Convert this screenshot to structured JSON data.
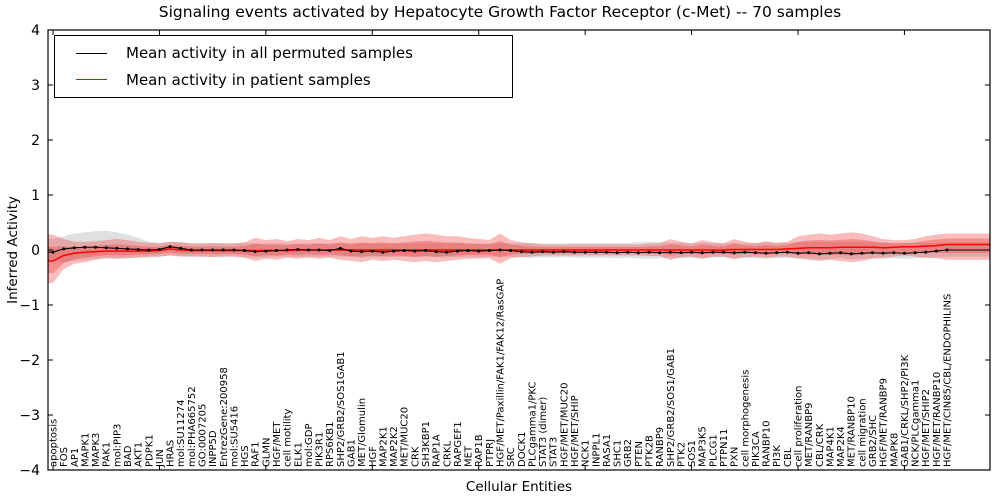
{
  "figure": {
    "title": "Signaling events activated by Hepatocyte Growth Factor Receptor (c-Met) -- 70 samples",
    "xlabel": "Cellular Entities",
    "ylabel": "Inferred Activity"
  },
  "legend": {
    "entries": [
      {
        "label": "Mean activity in all permuted samples",
        "color": "#000000"
      },
      {
        "label": "Mean activity in patient samples",
        "color": "#ff0000"
      }
    ]
  },
  "colors": {
    "permuted_line": "#000000",
    "patient_line": "#ff0000",
    "permuted_band": "#999999",
    "patient_band": "#f03030",
    "axis": "#000000",
    "background": "#ffffff"
  },
  "chart_data": {
    "type": "line",
    "title": "Signaling events activated by Hepatocyte Growth Factor Receptor (c-Met) -- 70 samples",
    "xlabel": "Cellular Entities",
    "ylabel": "Inferred Activity",
    "ylim": [
      -4,
      4
    ],
    "yticklabels": [
      "4",
      "3",
      "2",
      "1",
      "0",
      "−1",
      "−2",
      "−3",
      "−4"
    ],
    "ytick_values": [
      4,
      3,
      2,
      1,
      0,
      -1,
      -2,
      -3,
      -4
    ],
    "xtick_indices": [
      0,
      10,
      20,
      30,
      40,
      50,
      60,
      70,
      80
    ],
    "grid": false,
    "legend_position": "upper left",
    "categories": [
      "apoptosis",
      "FOS",
      "AP1",
      "MAPK1",
      "MAPK3",
      "PAK1",
      "mol:PIP3",
      "BAD",
      "AKT1",
      "PDPK1",
      "JUN",
      "HRAS",
      "mol:SU11274",
      "mol:PHA665752",
      "GO:0007205",
      "INPP5D",
      "EntrezGene:200958",
      "mol:SU5416",
      "HGS",
      "RAF1",
      "GLMN",
      "HGF/MET",
      "cell motility",
      "ELK1",
      "mol:GDP",
      "PIK3R1",
      "RPS6KB1",
      "SHP2/GRB2/SOS1GAB1",
      "GAB1",
      "MET/Glomulin",
      "HGF",
      "MAP2K1",
      "MAP2K2",
      "MET/MUC20",
      "CRK",
      "SH3KBP1",
      "RAP1A",
      "CRKL",
      "RAPGEF1",
      "MET",
      "RAP1B",
      "PTPRJ",
      "HGF/MET/Paxillin/FAK1/FAK12/RasGAP",
      "SRC",
      "DOCK1",
      "PLCgamma1/PKC",
      "STAT3 (dimer)",
      "STAT3",
      "HGF/MET/MUC20",
      "HGF/MET/SHIP",
      "NCK1",
      "INPPL1",
      "RASA1",
      "SHC1",
      "GRB2",
      "PTEN",
      "PTK2B",
      "RANBP9",
      "SHP2/GRB2/SOS1/GAB1",
      "PTK2",
      "SOS1",
      "MAP3K5",
      "PLCG1",
      "PTPN11",
      "PXN",
      "cell morphogenesis",
      "PIK3CA",
      "RANBP10",
      "PI3K",
      "CBL",
      "cell proliferation",
      "MET/RANBP9",
      "CBL/CRK",
      "MAP4K1",
      "MAP2K4",
      "MET/RANBP10",
      "cell migration",
      "GRB2/SHC",
      "HGF/MET/RANBP9",
      "MAPK8",
      "GAB1/CRKL/SHP2/PI3K",
      "NCK/PLCgamma1",
      "HGF/MET/SHIP2",
      "HGF/MET/RANBP10",
      "HGF/MET/CIN85/CBL/ENDOPHILINS"
    ],
    "series": [
      {
        "name": "Mean activity in all permuted samples",
        "color": "#000000",
        "style": "solid with dot markers",
        "values": [
          -0.04,
          0.02,
          0.04,
          0.05,
          0.05,
          0.04,
          0.03,
          0.02,
          0.01,
          0.0,
          0.01,
          0.06,
          0.03,
          0.0,
          0.0,
          0.0,
          0.0,
          0.0,
          -0.01,
          -0.03,
          -0.02,
          -0.01,
          0.0,
          0.01,
          0.0,
          0.0,
          -0.01,
          0.03,
          -0.02,
          -0.03,
          -0.02,
          -0.04,
          -0.02,
          -0.01,
          -0.02,
          -0.01,
          -0.03,
          -0.04,
          -0.02,
          -0.01,
          -0.02,
          -0.01,
          0.0,
          -0.01,
          -0.03,
          -0.04,
          -0.03,
          -0.04,
          -0.03,
          -0.04,
          -0.04,
          -0.04,
          -0.04,
          -0.05,
          -0.04,
          -0.05,
          -0.04,
          -0.05,
          -0.04,
          -0.05,
          -0.04,
          -0.05,
          -0.04,
          -0.04,
          -0.05,
          -0.04,
          -0.05,
          -0.06,
          -0.05,
          -0.04,
          -0.06,
          -0.05,
          -0.07,
          -0.06,
          -0.05,
          -0.07,
          -0.06,
          -0.05,
          -0.06,
          -0.05,
          -0.06,
          -0.05,
          -0.04,
          -0.02,
          0.0
        ]
      },
      {
        "name": "Mean activity in patient samples",
        "color": "#ff0000",
        "style": "solid",
        "values": [
          -0.2,
          -0.1,
          -0.06,
          -0.04,
          -0.03,
          -0.02,
          -0.02,
          -0.02,
          -0.02,
          -0.02,
          -0.01,
          0.02,
          0.0,
          -0.01,
          -0.01,
          -0.01,
          -0.01,
          -0.01,
          -0.01,
          -0.01,
          -0.01,
          -0.01,
          -0.01,
          0.0,
          0.0,
          0.0,
          0.0,
          0.0,
          0.0,
          0.0,
          0.0,
          0.0,
          0.0,
          0.0,
          0.0,
          0.0,
          0.0,
          0.0,
          0.0,
          0.0,
          0.0,
          0.0,
          0.0,
          0.0,
          0.0,
          0.0,
          0.0,
          0.0,
          0.0,
          0.0,
          0.0,
          0.0,
          0.0,
          0.0,
          0.0,
          0.0,
          0.0,
          0.0,
          0.0,
          0.0,
          0.0,
          0.0,
          0.0,
          0.0,
          0.01,
          0.01,
          0.01,
          0.01,
          0.01,
          0.02,
          0.03,
          0.04,
          0.04,
          0.04,
          0.05,
          0.05,
          0.05,
          0.05,
          0.04,
          0.05,
          0.06,
          0.06,
          0.07,
          0.08,
          0.1
        ]
      }
    ],
    "bands": [
      {
        "name": "permuted samples std band",
        "color": "#999999",
        "opacity": 0.3,
        "upper": [
          0.2,
          0.25,
          0.3,
          0.32,
          0.34,
          0.35,
          0.32,
          0.28,
          0.22,
          0.15,
          0.13,
          0.15,
          0.14,
          0.12,
          0.12,
          0.12,
          0.12,
          0.12,
          0.12,
          0.12,
          0.12,
          0.12,
          0.12,
          0.12,
          0.12,
          0.12,
          0.12,
          0.13,
          0.12,
          0.12,
          0.12,
          0.12,
          0.12,
          0.12,
          0.12,
          0.12,
          0.12,
          0.12,
          0.12,
          0.12,
          0.12,
          0.12,
          0.12,
          0.12,
          0.12,
          0.13,
          0.12,
          0.12,
          0.12,
          0.13,
          0.13,
          0.13,
          0.13,
          0.13,
          0.13,
          0.14,
          0.15,
          0.14,
          0.13,
          0.13,
          0.12,
          0.13,
          0.12,
          0.12,
          0.13,
          0.12,
          0.13,
          0.14,
          0.13,
          0.13,
          0.14,
          0.14,
          0.15,
          0.14,
          0.14,
          0.15,
          0.14,
          0.14,
          0.14,
          0.13,
          0.13,
          0.13,
          0.13,
          0.13,
          0.14
        ],
        "lower": [
          -0.2,
          -0.22,
          -0.2,
          -0.18,
          -0.16,
          -0.15,
          -0.15,
          -0.14,
          -0.13,
          -0.12,
          -0.12,
          -0.1,
          -0.11,
          -0.12,
          -0.12,
          -0.12,
          -0.12,
          -0.12,
          -0.13,
          -0.14,
          -0.13,
          -0.12,
          -0.12,
          -0.12,
          -0.12,
          -0.12,
          -0.12,
          -0.12,
          -0.13,
          -0.14,
          -0.13,
          -0.14,
          -0.13,
          -0.12,
          -0.13,
          -0.12,
          -0.13,
          -0.14,
          -0.13,
          -0.12,
          -0.13,
          -0.12,
          -0.12,
          -0.12,
          -0.13,
          -0.14,
          -0.13,
          -0.14,
          -0.13,
          -0.14,
          -0.14,
          -0.14,
          -0.14,
          -0.15,
          -0.14,
          -0.15,
          -0.16,
          -0.15,
          -0.14,
          -0.15,
          -0.14,
          -0.15,
          -0.14,
          -0.13,
          -0.15,
          -0.14,
          -0.15,
          -0.16,
          -0.15,
          -0.14,
          -0.16,
          -0.15,
          -0.17,
          -0.16,
          -0.15,
          -0.17,
          -0.16,
          -0.15,
          -0.16,
          -0.15,
          -0.16,
          -0.15,
          -0.14,
          -0.13,
          -0.12
        ]
      },
      {
        "name": "patient samples std band",
        "color": "#f03030",
        "opacity": 0.32,
        "upper": [
          0.28,
          0.2,
          0.15,
          0.15,
          0.16,
          0.18,
          0.2,
          0.18,
          0.15,
          0.13,
          0.12,
          0.15,
          0.14,
          0.12,
          0.12,
          0.13,
          0.12,
          0.12,
          0.14,
          0.22,
          0.18,
          0.2,
          0.16,
          0.2,
          0.18,
          0.22,
          0.18,
          0.25,
          0.2,
          0.25,
          0.22,
          0.25,
          0.22,
          0.25,
          0.28,
          0.3,
          0.28,
          0.25,
          0.25,
          0.22,
          0.2,
          0.18,
          0.3,
          0.18,
          0.14,
          0.12,
          0.1,
          0.1,
          0.1,
          0.1,
          0.1,
          0.1,
          0.1,
          0.1,
          0.1,
          0.1,
          0.12,
          0.12,
          0.2,
          0.15,
          0.12,
          0.18,
          0.14,
          0.12,
          0.2,
          0.15,
          0.12,
          0.16,
          0.13,
          0.15,
          0.25,
          0.28,
          0.3,
          0.28,
          0.3,
          0.32,
          0.3,
          0.25,
          0.2,
          0.18,
          0.18,
          0.2,
          0.25,
          0.28,
          0.3
        ],
        "lower": [
          -0.6,
          -0.35,
          -0.25,
          -0.22,
          -0.18,
          -0.15,
          -0.16,
          -0.15,
          -0.14,
          -0.13,
          -0.12,
          -0.1,
          -0.12,
          -0.12,
          -0.12,
          -0.13,
          -0.12,
          -0.12,
          -0.14,
          -0.2,
          -0.16,
          -0.18,
          -0.14,
          -0.16,
          -0.14,
          -0.16,
          -0.14,
          -0.18,
          -0.2,
          -0.22,
          -0.18,
          -0.2,
          -0.18,
          -0.2,
          -0.22,
          -0.2,
          -0.22,
          -0.2,
          -0.18,
          -0.16,
          -0.16,
          -0.15,
          -0.25,
          -0.15,
          -0.13,
          -0.12,
          -0.1,
          -0.1,
          -0.1,
          -0.1,
          -0.1,
          -0.1,
          -0.1,
          -0.1,
          -0.1,
          -0.1,
          -0.11,
          -0.11,
          -0.18,
          -0.13,
          -0.12,
          -0.16,
          -0.12,
          -0.12,
          -0.17,
          -0.13,
          -0.12,
          -0.14,
          -0.12,
          -0.12,
          -0.15,
          -0.18,
          -0.2,
          -0.18,
          -0.2,
          -0.22,
          -0.2,
          -0.16,
          -0.14,
          -0.12,
          -0.1,
          -0.12,
          -0.14,
          -0.15,
          -0.18
        ]
      }
    ]
  }
}
